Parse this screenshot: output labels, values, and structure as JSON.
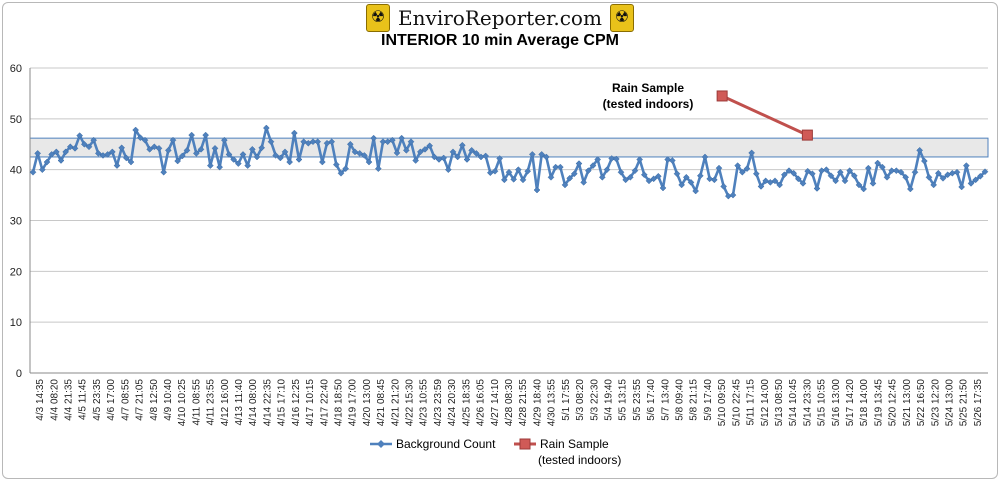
{
  "header": {
    "logo_text": "EnviroReporter.com",
    "logo_icon": "radiation-hazard-icon"
  },
  "chart_data": {
    "type": "line",
    "title": "INTERIOR 10 min Average CPM",
    "xlabel": "",
    "ylabel": "",
    "ylim": [
      0,
      60
    ],
    "yticks": [
      0,
      10,
      20,
      30,
      40,
      50,
      60
    ],
    "grid": true,
    "legend_position": "bottom",
    "band": {
      "ymin": 42.5,
      "ymax": 46.2,
      "color": "#e8e8e8",
      "border": "#4f81bd"
    },
    "x_tick_labels": [
      "4/3 14:35",
      "4/4 08:20",
      "4/4 21:35",
      "4/5 11:45",
      "4/5 23:35",
      "4/6 17:00",
      "4/7 08:55",
      "4/7 21:05",
      "4/8 12:50",
      "4/9 10:40",
      "4/10 10:25",
      "4/11 08:55",
      "4/11 23:55",
      "4/12 16:00",
      "4/13 11:40",
      "4/14 08:00",
      "4/14 22:35",
      "4/15 17:10",
      "4/16 12:25",
      "4/17 10:15",
      "4/17 22:40",
      "4/18 18:50",
      "4/19 17:00",
      "4/20 13:00",
      "4/21 08:45",
      "4/21 21:20",
      "4/22 15:30",
      "4/23 10:55",
      "4/23 23:59",
      "4/24 20:30",
      "4/25 18:35",
      "4/26 16:05",
      "4/27 14:10",
      "4/28 08:30",
      "4/28 21:55",
      "4/29 18:40",
      "4/30 13:55",
      "5/1 17:55",
      "5/3 08:20",
      "5/3 22:30",
      "5/4 19:40",
      "5/5 13:15",
      "5/5 23:55",
      "5/6 17:40",
      "5/7 13:40",
      "5/8 09:40",
      "5/8 21:15",
      "5/9 17:40",
      "5/10 09:50",
      "5/10 22:45",
      "5/11 17:15",
      "5/12 14:00",
      "5/13 08:50",
      "5/14 10:45",
      "5/14 23:30",
      "5/15 10:55",
      "5/16 13:00",
      "5/17 14:20",
      "5/18 14:00",
      "5/19 13:45",
      "5/20 12:45",
      "5/21 13:00",
      "5/22 16:50",
      "5/23 12:20",
      "5/24 13:00",
      "5/25 21:50",
      "5/26 17:35"
    ],
    "series": [
      {
        "name": "Background Count",
        "color": "#4f81bd",
        "values": [
          39.5,
          43.2,
          40.0,
          41.5,
          43.0,
          43.5,
          41.8,
          43.5,
          44.5,
          44.2,
          46.7,
          45.0,
          44.5,
          45.8,
          43.2,
          42.8,
          43.0,
          43.5,
          40.8,
          44.3,
          42.3,
          41.5,
          47.8,
          46.3,
          45.8,
          44.0,
          44.5,
          44.2,
          39.5,
          43.8,
          45.8,
          41.7,
          42.7,
          43.8,
          46.8,
          43.2,
          44.0,
          46.8,
          40.8,
          44.2,
          40.5,
          45.8,
          43.0,
          42.0,
          41.2,
          43.0,
          40.8,
          44.0,
          42.5,
          44.3,
          48.2,
          45.5,
          42.8,
          42.3,
          43.5,
          41.5,
          47.2,
          42.0,
          45.5,
          45.2,
          45.5,
          45.5,
          41.5,
          45.2,
          45.5,
          41.0,
          39.3,
          40.2,
          45.0,
          43.5,
          43.2,
          42.8,
          41.5,
          46.2,
          40.2,
          45.5,
          45.5,
          45.8,
          43.3,
          46.2,
          43.8,
          45.5,
          41.8,
          43.5,
          44.0,
          44.7,
          42.5,
          42.0,
          42.3,
          40.0,
          43.5,
          42.5,
          44.8,
          42.0,
          43.8,
          43.2,
          42.5,
          42.7,
          39.4,
          39.7,
          42.2,
          38.0,
          39.5,
          38.1,
          40.0,
          38.0,
          39.7,
          43.0,
          36.0,
          43.0,
          42.5,
          38.5,
          40.5,
          40.5,
          37.0,
          38.3,
          39.2,
          41.2,
          37.5,
          39.8,
          40.8,
          42.0,
          38.5,
          40.0,
          42.2,
          42.1,
          39.5,
          38.0,
          38.5,
          39.8,
          42.0,
          39.0,
          37.8,
          38.2,
          38.7,
          36.4,
          42.0,
          41.8,
          39.2,
          37.0,
          38.5,
          37.5,
          35.8,
          38.8,
          42.5,
          38.2,
          38.0,
          40.3,
          36.7,
          34.8,
          35.0,
          40.8,
          39.5,
          40.2,
          43.3,
          39.2,
          36.7,
          37.8,
          37.5,
          37.8,
          37.0,
          39.0,
          39.8,
          39.3,
          38.2,
          37.3,
          39.7,
          39.2,
          36.3,
          39.8,
          40.0,
          38.8,
          37.8,
          39.5,
          37.8,
          39.8,
          38.8,
          37.0,
          36.2,
          40.3,
          37.3,
          41.3,
          40.5,
          38.5,
          39.8,
          39.8,
          39.5,
          38.5,
          36.2,
          39.5,
          43.8,
          41.7,
          38.5,
          37.0,
          39.3,
          38.3,
          39.0,
          39.3,
          39.5,
          36.6,
          40.8,
          37.3,
          38.0,
          38.7,
          39.6
        ]
      },
      {
        "name": "Rain Sample\n(tested indoors)",
        "color": "#c0504d",
        "points": [
          {
            "x": "5/10 09:50",
            "y": 54.5
          },
          {
            "x": "5/14 23:30",
            "y": 46.8
          }
        ]
      }
    ],
    "annotation": {
      "text": "Rain Sample\n(tested indoors)"
    }
  }
}
